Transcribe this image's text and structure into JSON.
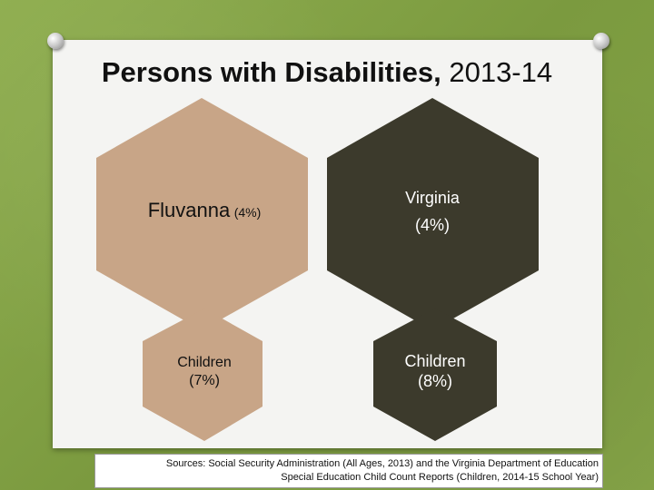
{
  "slide": {
    "title_bold": "Persons with Disabilities,",
    "title_normal": "2013-14"
  },
  "hexagons": {
    "fluvanna": {
      "name": "Fluvanna",
      "pct": "(4%)",
      "color": "#c8a587"
    },
    "virginia": {
      "name": "Virginia",
      "pct": "(4%)",
      "color": "#3c3a2c"
    },
    "fluvanna_children": {
      "line1": "Children",
      "line2": "(7%)",
      "color": "#c8a587"
    },
    "virginia_children": {
      "line1": "Children",
      "line2": "(8%)",
      "color": "#3c3a2c"
    }
  },
  "sources": {
    "line1": "Sources: Social Security Administration (All Ages, 2013) and the Virginia Department of Education",
    "line2": "Special Education Child Count Reports (Children, 2014-15 School Year)"
  }
}
